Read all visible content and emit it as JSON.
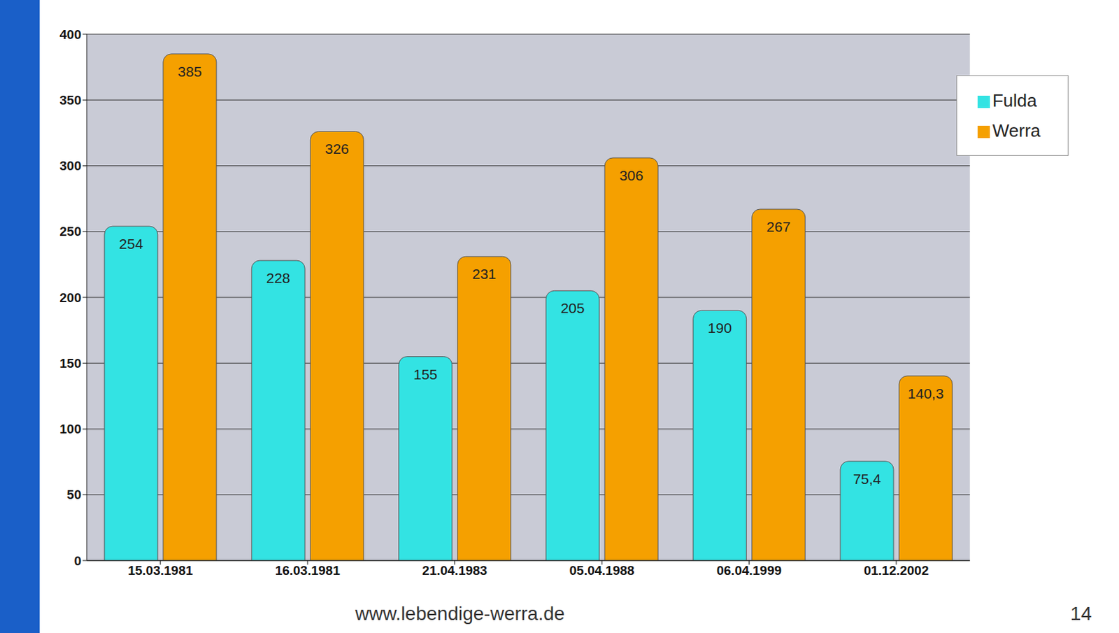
{
  "chart_data": {
    "type": "bar",
    "categories": [
      "15.03.1981",
      "16.03.1981",
      "21.04.1983",
      "05.04.1988",
      "06.04.1999",
      "01.12.2002"
    ],
    "series": [
      {
        "name": "Fulda",
        "color": "#33e3e3",
        "values": [
          254,
          228,
          155,
          205,
          190,
          75.4
        ],
        "value_labels": [
          "254",
          "228",
          "155",
          "205",
          "190",
          "75,4"
        ]
      },
      {
        "name": "Werra",
        "color": "#f5a000",
        "values": [
          385,
          326,
          231,
          306,
          267,
          140.3
        ],
        "value_labels": [
          "385",
          "326",
          "231",
          "306",
          "267",
          "140,3"
        ]
      }
    ],
    "ylim": [
      0,
      400
    ],
    "yticks": [
      0,
      50,
      100,
      150,
      200,
      250,
      300,
      350,
      400
    ],
    "grid": true,
    "legend": "top-right",
    "data_labels": true,
    "annotations": [
      "www.lebendige-werra.de",
      "14"
    ]
  }
}
